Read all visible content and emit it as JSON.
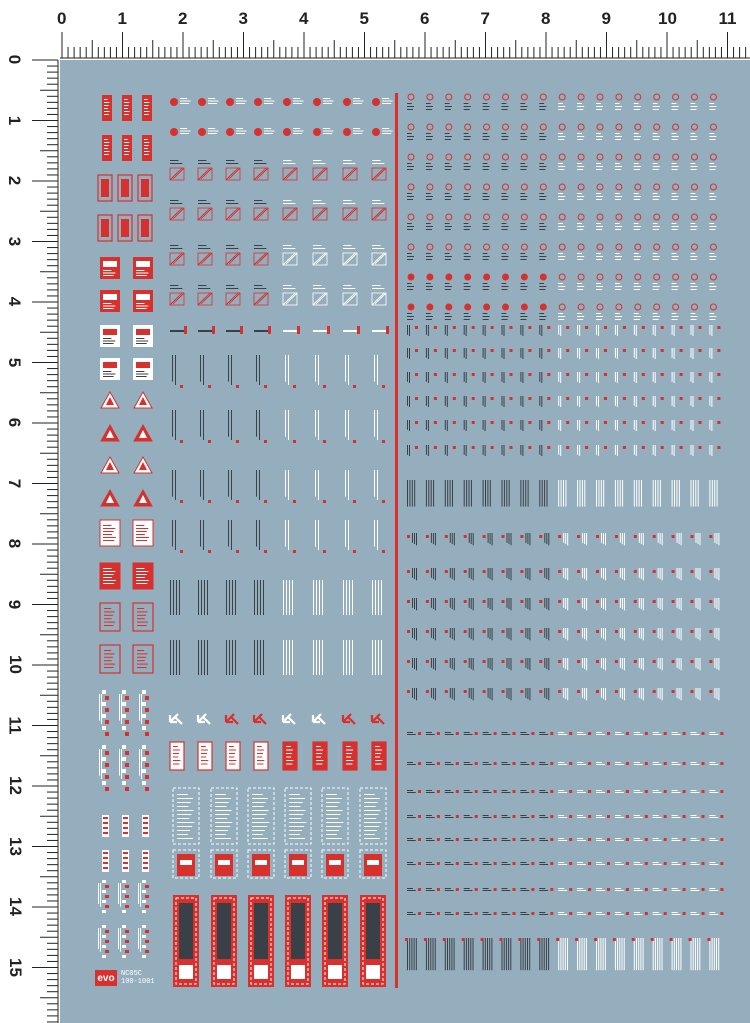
{
  "ruler": {
    "horizontal_labels": [
      "0",
      "1",
      "2",
      "3",
      "4",
      "5",
      "6",
      "7",
      "8",
      "9",
      "10",
      "11"
    ],
    "vertical_labels": [
      "0",
      "1",
      "2",
      "3",
      "4",
      "5",
      "6",
      "7",
      "8",
      "9",
      "10",
      "11",
      "12",
      "13",
      "14",
      "15"
    ]
  },
  "brand": {
    "logo_text": "evo",
    "code_line_1": "NC05C",
    "code_line_2": "100-1001"
  },
  "colors": {
    "sheet": "#95aebd",
    "decal_red": "#d8302c",
    "decal_white": "#ffffff",
    "decal_dark": "#3a4048",
    "ruler_ink": "#222222"
  }
}
